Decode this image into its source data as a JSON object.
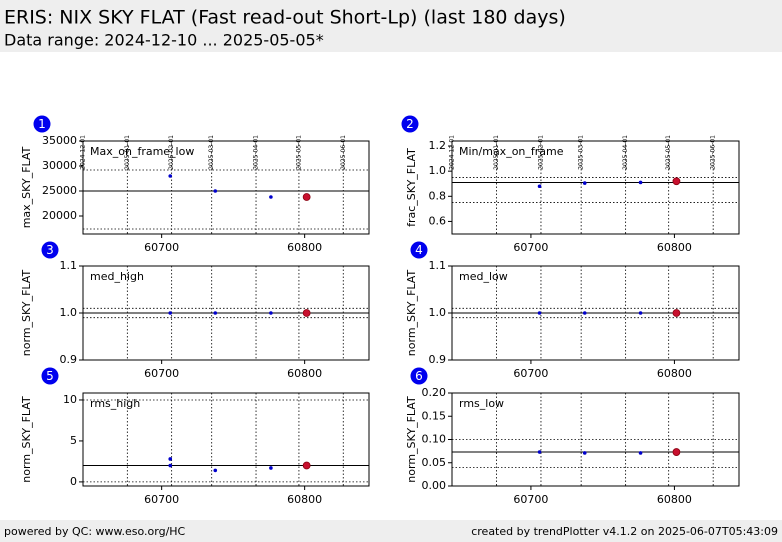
{
  "header": {
    "title": "ERIS: NIX SKY FLAT (Fast read-out Short-Lp) (last 180 days)",
    "subtitle": "Data range: 2024-12-10 ... 2025-05-05*"
  },
  "footer": {
    "left": "powered by QC: www.eso.org/HC",
    "right": "created by trendPlotter v4.1.2 on 2025-06-07T05:43:09"
  },
  "chart_data": [
    {
      "type": "scatter",
      "badge": "1",
      "label": "Max_on_frame_low",
      "y_label": "max_SKY_FLAT",
      "xlim": [
        60645,
        60845
      ],
      "xticks": [
        60700,
        60800
      ],
      "ylim": [
        16400,
        35000
      ],
      "yticks": [
        20000,
        25000,
        30000,
        35000
      ],
      "top_ticks": [
        {
          "value": 60645,
          "label": "2024-12-01"
        },
        {
          "value": 60676,
          "label": "2025-01-01"
        },
        {
          "value": 60707,
          "label": "2025-02-01"
        },
        {
          "value": 60735,
          "label": "2025-03-01"
        },
        {
          "value": 60766,
          "label": "2025-04-01"
        },
        {
          "value": 60796,
          "label": "2025-05-01"
        },
        {
          "value": 60827,
          "label": "2025-06-01"
        }
      ],
      "hlines": [
        {
          "value": 25000,
          "style": "solid"
        },
        {
          "value": 29200,
          "style": "dotted"
        },
        {
          "value": 17400,
          "style": "dotted"
        }
      ],
      "series": [
        {
          "color": "#0000cc",
          "x": [
            60706,
            60737.5,
            60776.4
          ],
          "values": [
            28000,
            25000,
            23800
          ]
        },
        {
          "color": "#c8102e",
          "x": [
            60801.4
          ],
          "values": [
            23800
          ]
        }
      ]
    },
    {
      "type": "scatter",
      "badge": "2",
      "label": "Min/max_on_frame",
      "y_label": "frac_SKY_FLAT",
      "xlim": [
        60645,
        60845
      ],
      "xticks": [
        60700,
        60800
      ],
      "ylim": [
        0.5,
        1.24
      ],
      "yticks": [
        0.6,
        0.8,
        {
          "value": 1,
          "label": "1.0"
        },
        1.2
      ],
      "top_ticks": [
        {
          "value": 60645,
          "label": "2024-12-01"
        },
        {
          "value": 60676,
          "label": "2025-01-01"
        },
        {
          "value": 60707,
          "label": "2025-02-01"
        },
        {
          "value": 60735,
          "label": "2025-03-01"
        },
        {
          "value": 60766,
          "label": "2025-04-01"
        },
        {
          "value": 60796,
          "label": "2025-05-01"
        },
        {
          "value": 60827,
          "label": "2025-06-01"
        }
      ],
      "hlines": [
        {
          "value": 0.91,
          "style": "solid"
        },
        {
          "value": 0.95,
          "style": "dotted"
        },
        {
          "value": 0.75,
          "style": "dotted"
        }
      ],
      "series": [
        {
          "color": "#0000cc",
          "x": [
            60706,
            60737.5,
            60776.4
          ],
          "values": [
            0.88,
            0.905,
            0.91
          ]
        },
        {
          "color": "#c8102e",
          "x": [
            60801.4
          ],
          "values": [
            0.92
          ]
        }
      ]
    },
    {
      "type": "scatter",
      "badge": "3",
      "label": "med_high",
      "y_label": "norm_SKY_FLAT",
      "xlim": [
        60645,
        60845
      ],
      "xticks": [
        60700,
        60800
      ],
      "ylim": [
        0.9,
        1.1
      ],
      "yticks": [
        0.9,
        {
          "value": 1,
          "label": "1.0"
        },
        1.1
      ],
      "vlines": [
        60676,
        60707,
        60735,
        60766,
        60796,
        60827
      ],
      "hlines": [
        {
          "value": 1,
          "style": "solid"
        },
        {
          "value": 1.01,
          "style": "dotted"
        },
        {
          "value": 0.99,
          "style": "dotted"
        }
      ],
      "series": [
        {
          "color": "#0000cc",
          "x": [
            60706,
            60737.5,
            60776.4
          ],
          "values": [
            1,
            1,
            1
          ]
        },
        {
          "color": "#c8102e",
          "x": [
            60801.4
          ],
          "values": [
            1
          ]
        }
      ]
    },
    {
      "type": "scatter",
      "badge": "4",
      "label": "med_low",
      "y_label": "norm_SKY_FLAT",
      "xlim": [
        60645,
        60845
      ],
      "xticks": [
        60700,
        60800
      ],
      "ylim": [
        0.9,
        1.1
      ],
      "yticks": [
        0.9,
        {
          "value": 1,
          "label": "1.0"
        },
        1.1
      ],
      "vlines": [
        60676,
        60707,
        60735,
        60766,
        60796,
        60827
      ],
      "hlines": [
        {
          "value": 1,
          "style": "solid"
        },
        {
          "value": 1.01,
          "style": "dotted"
        },
        {
          "value": 0.99,
          "style": "dotted"
        }
      ],
      "series": [
        {
          "color": "#0000cc",
          "x": [
            60706,
            60737.5,
            60776.4
          ],
          "values": [
            1,
            1,
            1
          ]
        },
        {
          "color": "#c8102e",
          "x": [
            60801.4
          ],
          "values": [
            1
          ]
        }
      ]
    },
    {
      "type": "scatter",
      "badge": "5",
      "label": "rms_high",
      "y_label": "norm_SKY_FLAT",
      "xlim": [
        60645,
        60845
      ],
      "xticks": [
        60700,
        60800
      ],
      "ylim": [
        -0.5,
        10.85
      ],
      "yticks": [
        0,
        5,
        10
      ],
      "vlines": [
        60676,
        60707,
        60735,
        60766,
        60796,
        60827
      ],
      "hlines": [
        {
          "value": 2,
          "style": "solid"
        },
        {
          "value": 10,
          "style": "dotted"
        },
        {
          "value": 0,
          "style": "dotted"
        }
      ],
      "series": [
        {
          "color": "#0000cc",
          "x": [
            60706,
            60706,
            60737.5,
            60776.4
          ],
          "values": [
            2.8,
            2,
            1.4,
            1.7
          ]
        },
        {
          "color": "#c8102e",
          "x": [
            60801.4
          ],
          "values": [
            2
          ]
        }
      ]
    },
    {
      "type": "scatter",
      "badge": "6",
      "label": "rms_low",
      "y_label": "norm_SKY_FLAT",
      "xlim": [
        60645,
        60845
      ],
      "xticks": [
        60700,
        60800
      ],
      "ylim": [
        0,
        0.2
      ],
      "yticks": [
        {
          "value": 0,
          "label": "0.00"
        },
        0.05,
        {
          "value": 0.1,
          "label": "0.10"
        },
        0.15,
        {
          "value": 0.2,
          "label": "0.20"
        }
      ],
      "vlines": [
        60676,
        60707,
        60735,
        60766,
        60796,
        60827
      ],
      "hlines": [
        {
          "value": 0.073,
          "style": "solid"
        },
        {
          "value": 0.1,
          "style": "dotted"
        },
        {
          "value": 0.04,
          "style": "dotted"
        }
      ],
      "series": [
        {
          "color": "#0000cc",
          "x": [
            60706,
            60737.5,
            60776.4
          ],
          "values": [
            0.073,
            0.071,
            0.071
          ]
        },
        {
          "color": "#c8102e",
          "x": [
            60801.4
          ],
          "values": [
            0.073
          ]
        }
      ]
    }
  ]
}
